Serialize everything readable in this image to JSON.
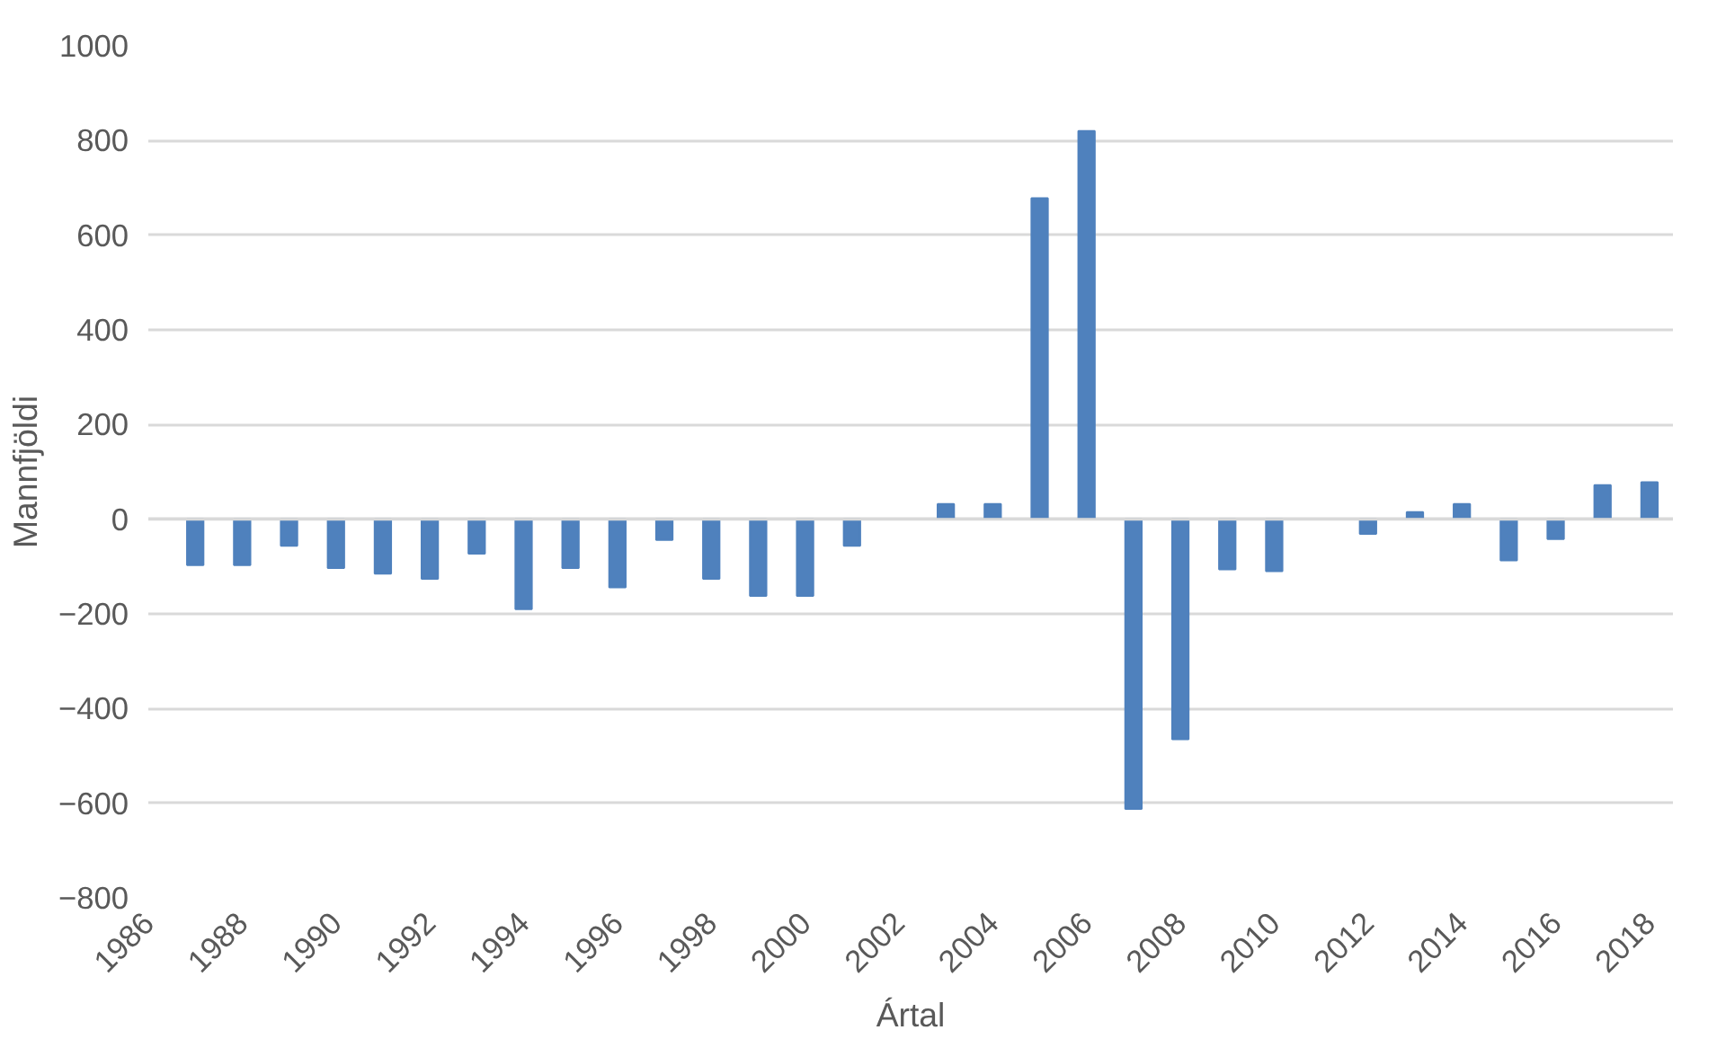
{
  "chart_data": {
    "type": "bar",
    "xlabel": "Ártal",
    "ylabel": "Mannfjöldi",
    "x": [
      1987,
      1988,
      1989,
      1990,
      1991,
      1992,
      1993,
      1994,
      1995,
      1996,
      1997,
      1998,
      1999,
      2000,
      2001,
      2002,
      2003,
      2004,
      2005,
      2006,
      2007,
      2008,
      2009,
      2010,
      2011,
      2012,
      2013,
      2014,
      2015,
      2016,
      2017,
      2018
    ],
    "values": [
      -97,
      -97,
      -56,
      -103,
      -115,
      -126,
      -73,
      -190,
      -103,
      -144,
      -44,
      -126,
      -162,
      -162,
      -56,
      null,
      32,
      32,
      678,
      820,
      -612,
      -465,
      -106,
      -110,
      null,
      -31,
      15,
      32,
      -87,
      -42,
      72,
      78
    ],
    "color": "#4f81bd",
    "xlim": [
      1986,
      2018.5
    ],
    "xticks": [
      1986,
      1988,
      1990,
      1992,
      1994,
      1996,
      1998,
      2000,
      2002,
      2004,
      2006,
      2008,
      2010,
      2012,
      2014,
      2016,
      2018
    ],
    "ylim": [
      -800,
      1000
    ],
    "yticks": [
      -800,
      -600,
      -400,
      -200,
      0,
      200,
      400,
      600,
      800,
      1000
    ],
    "grid": "y"
  }
}
